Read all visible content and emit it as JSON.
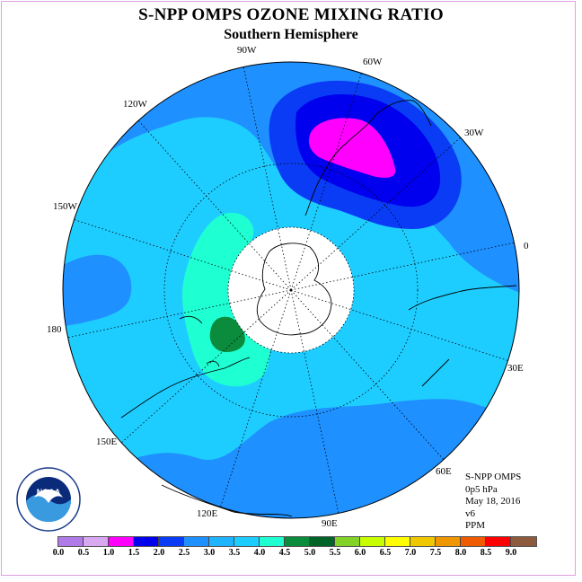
{
  "title": "S-NPP OMPS OZONE MIXING RATIO",
  "subtitle": "Southern Hemisphere",
  "longitude_labels": [
    "90W",
    "60W",
    "30W",
    "0",
    "30E",
    "60E",
    "90E",
    "120E",
    "150E",
    "180",
    "150W",
    "120W"
  ],
  "info": {
    "instrument": "S-NPP OMPS",
    "level": "0p5 hPa",
    "date": "May 18, 2016",
    "version": "v6",
    "units": "PPM"
  },
  "colorbar": {
    "ticks": [
      "0.0",
      "0.5",
      "1.0",
      "1.5",
      "2.0",
      "2.5",
      "3.0",
      "3.5",
      "4.0",
      "4.5",
      "5.0",
      "5.5",
      "6.0",
      "6.5",
      "7.0",
      "7.5",
      "8.0",
      "8.5",
      "9.0"
    ],
    "colors": [
      "#b07ae8",
      "#d8a8f0",
      "#ff00ff",
      "#0000ee",
      "#0a3cf5",
      "#1e90ff",
      "#1eb4ff",
      "#1ecdff",
      "#1effd2",
      "#0a8c3c",
      "#006428",
      "#82d228",
      "#c8ff00",
      "#ffff00",
      "#f0c800",
      "#f09600",
      "#f05a00",
      "#ff0000",
      "#8c5a3c"
    ]
  },
  "logo": {
    "text": "NOAA"
  },
  "colors": {
    "background_field": "#1ecdff",
    "field_2_5": "#1e90ff",
    "field_2_0": "#0a3cf5",
    "field_1_5": "#0000ee",
    "field_1_0": "#ff00ff",
    "field_4_0": "#1effd2",
    "field_4_5": "#0a8c3c",
    "frame": "#e0a0e0"
  }
}
